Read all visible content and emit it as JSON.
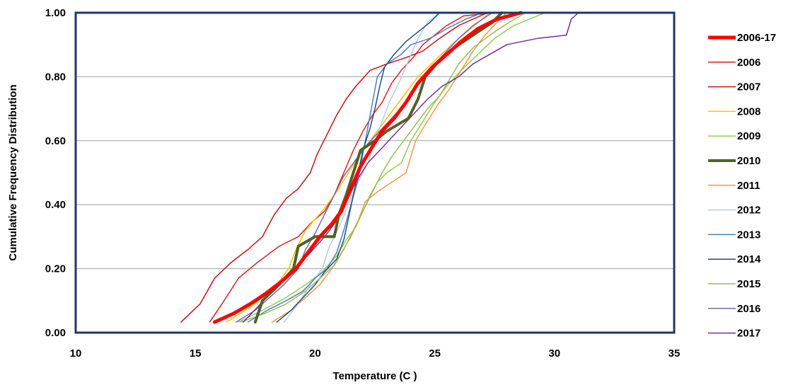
{
  "chart_data": {
    "type": "line",
    "title": "",
    "xlabel": "Temperature (C )",
    "ylabel": "Cumulative Frequency Distribution",
    "xlim": [
      10,
      35
    ],
    "ylim": [
      0,
      1
    ],
    "x_ticks": [
      "10",
      "15",
      "20",
      "25",
      "30",
      "35"
    ],
    "y_ticks": [
      "0.00",
      "0.20",
      "0.40",
      "0.60",
      "0.80",
      "1.00"
    ],
    "grid": "horizontal",
    "legend_position": "right",
    "colors": {
      "plot_border": "#1f3864",
      "grid": "#a0a0a0"
    },
    "series": [
      {
        "name": "2006-17",
        "color": "#ff0000",
        "width": 5,
        "points": [
          [
            15.8,
            0.033
          ],
          [
            16.6,
            0.06
          ],
          [
            17.3,
            0.09
          ],
          [
            17.9,
            0.12
          ],
          [
            18.6,
            0.16
          ],
          [
            19.2,
            0.2
          ],
          [
            19.7,
            0.25
          ],
          [
            20.2,
            0.3
          ],
          [
            20.7,
            0.34
          ],
          [
            21.1,
            0.38
          ],
          [
            21.5,
            0.45
          ],
          [
            21.9,
            0.52
          ],
          [
            22.3,
            0.57
          ],
          [
            22.8,
            0.63
          ],
          [
            23.3,
            0.67
          ],
          [
            23.8,
            0.72
          ],
          [
            24.3,
            0.78
          ],
          [
            24.9,
            0.83
          ],
          [
            25.5,
            0.87
          ],
          [
            26.1,
            0.91
          ],
          [
            26.8,
            0.95
          ],
          [
            27.6,
            0.98
          ],
          [
            28.6,
            1.0
          ]
        ]
      },
      {
        "name": "2006",
        "color": "#e02020",
        "width": 1.5,
        "points": [
          [
            15.6,
            0.033
          ],
          [
            16.2,
            0.1
          ],
          [
            16.8,
            0.17
          ],
          [
            17.6,
            0.22
          ],
          [
            18.5,
            0.27
          ],
          [
            19.3,
            0.3
          ],
          [
            19.8,
            0.34
          ],
          [
            20.4,
            0.38
          ],
          [
            20.8,
            0.43
          ],
          [
            21.2,
            0.5
          ],
          [
            21.6,
            0.57
          ],
          [
            22.0,
            0.63
          ],
          [
            22.4,
            0.68
          ],
          [
            22.8,
            0.72
          ],
          [
            23.2,
            0.78
          ],
          [
            23.6,
            0.82
          ],
          [
            24.1,
            0.86
          ],
          [
            24.5,
            0.9
          ],
          [
            25.0,
            0.93
          ],
          [
            25.5,
            0.96
          ],
          [
            26.2,
            0.99
          ],
          [
            27.5,
            1.0
          ]
        ]
      },
      {
        "name": "2007",
        "color": "#cc1010",
        "width": 1.5,
        "points": [
          [
            14.4,
            0.033
          ],
          [
            15.2,
            0.09
          ],
          [
            15.8,
            0.17
          ],
          [
            16.5,
            0.22
          ],
          [
            17.2,
            0.26
          ],
          [
            17.8,
            0.3
          ],
          [
            18.3,
            0.37
          ],
          [
            18.8,
            0.42
          ],
          [
            19.3,
            0.45
          ],
          [
            19.8,
            0.5
          ],
          [
            20.1,
            0.56
          ],
          [
            20.5,
            0.62
          ],
          [
            20.9,
            0.68
          ],
          [
            21.3,
            0.73
          ],
          [
            21.7,
            0.77
          ],
          [
            22.3,
            0.82
          ],
          [
            23.0,
            0.84
          ],
          [
            23.8,
            0.86
          ],
          [
            24.5,
            0.88
          ],
          [
            25.2,
            0.92
          ],
          [
            26.0,
            0.96
          ],
          [
            27.2,
            1.0
          ]
        ]
      },
      {
        "name": "2008",
        "color": "#ffc000",
        "width": 1.5,
        "points": [
          [
            16.3,
            0.033
          ],
          [
            17.3,
            0.08
          ],
          [
            18.3,
            0.14
          ],
          [
            18.9,
            0.2
          ],
          [
            19.2,
            0.26
          ],
          [
            19.6,
            0.32
          ],
          [
            20.3,
            0.38
          ],
          [
            20.9,
            0.44
          ],
          [
            21.4,
            0.5
          ],
          [
            21.9,
            0.56
          ],
          [
            22.5,
            0.62
          ],
          [
            23.1,
            0.68
          ],
          [
            23.7,
            0.74
          ],
          [
            24.3,
            0.8
          ],
          [
            25.0,
            0.85
          ],
          [
            25.7,
            0.9
          ],
          [
            26.5,
            0.95
          ],
          [
            27.3,
            1.0
          ]
        ]
      },
      {
        "name": "2009",
        "color": "#92d050",
        "width": 1.5,
        "points": [
          [
            16.8,
            0.033
          ],
          [
            17.8,
            0.07
          ],
          [
            18.8,
            0.11
          ],
          [
            19.6,
            0.15
          ],
          [
            20.3,
            0.19
          ],
          [
            20.9,
            0.24
          ],
          [
            21.3,
            0.29
          ],
          [
            21.7,
            0.33
          ],
          [
            22.0,
            0.38
          ],
          [
            22.3,
            0.43
          ],
          [
            22.6,
            0.47
          ],
          [
            23.0,
            0.5
          ],
          [
            23.6,
            0.53
          ],
          [
            24.0,
            0.6
          ],
          [
            24.5,
            0.66
          ],
          [
            25.0,
            0.72
          ],
          [
            25.5,
            0.77
          ],
          [
            26.1,
            0.82
          ],
          [
            26.8,
            0.87
          ],
          [
            27.5,
            0.92
          ],
          [
            28.3,
            0.96
          ],
          [
            29.6,
            1.0
          ]
        ]
      },
      {
        "name": "2010",
        "color": "#4f6228",
        "width": 4,
        "points": [
          [
            17.5,
            0.033
          ],
          [
            17.8,
            0.1
          ],
          [
            18.5,
            0.15
          ],
          [
            19.1,
            0.2
          ],
          [
            19.3,
            0.27
          ],
          [
            20.0,
            0.3
          ],
          [
            20.8,
            0.3
          ],
          [
            21.0,
            0.37
          ],
          [
            21.3,
            0.43
          ],
          [
            21.6,
            0.5
          ],
          [
            21.9,
            0.57
          ],
          [
            22.5,
            0.6
          ],
          [
            23.0,
            0.63
          ],
          [
            23.9,
            0.67
          ],
          [
            24.3,
            0.73
          ],
          [
            24.6,
            0.8
          ],
          [
            25.3,
            0.86
          ],
          [
            26.0,
            0.9
          ],
          [
            26.8,
            0.94
          ],
          [
            27.4,
            0.97
          ],
          [
            27.8,
            1.0
          ]
        ]
      },
      {
        "name": "2011",
        "color": "#f79646",
        "width": 1.5,
        "points": [
          [
            18.2,
            0.033
          ],
          [
            19.0,
            0.07
          ],
          [
            19.6,
            0.11
          ],
          [
            20.2,
            0.15
          ],
          [
            20.7,
            0.2
          ],
          [
            21.1,
            0.25
          ],
          [
            21.5,
            0.3
          ],
          [
            21.8,
            0.35
          ],
          [
            22.1,
            0.41
          ],
          [
            22.6,
            0.44
          ],
          [
            23.2,
            0.47
          ],
          [
            23.8,
            0.5
          ],
          [
            24.0,
            0.55
          ],
          [
            24.2,
            0.6
          ],
          [
            24.6,
            0.65
          ],
          [
            25.1,
            0.71
          ],
          [
            25.6,
            0.76
          ],
          [
            26.1,
            0.82
          ],
          [
            26.6,
            0.88
          ],
          [
            27.1,
            0.93
          ],
          [
            27.6,
            0.97
          ],
          [
            28.0,
            1.0
          ]
        ]
      },
      {
        "name": "2012",
        "color": "#b8cce4",
        "width": 1.5,
        "points": [
          [
            18.7,
            0.033
          ],
          [
            19.3,
            0.09
          ],
          [
            19.8,
            0.15
          ],
          [
            20.3,
            0.2
          ],
          [
            20.6,
            0.27
          ],
          [
            21.0,
            0.33
          ],
          [
            21.4,
            0.4
          ],
          [
            21.8,
            0.47
          ],
          [
            22.2,
            0.53
          ],
          [
            22.5,
            0.6
          ],
          [
            22.8,
            0.66
          ],
          [
            23.1,
            0.72
          ],
          [
            23.5,
            0.78
          ],
          [
            23.9,
            0.85
          ],
          [
            24.3,
            0.92
          ],
          [
            24.7,
            0.97
          ],
          [
            25.2,
            1.0
          ]
        ]
      },
      {
        "name": "2013",
        "color": "#4f81bd",
        "width": 1.5,
        "points": [
          [
            17.2,
            0.033
          ],
          [
            18.0,
            0.07
          ],
          [
            18.8,
            0.1
          ],
          [
            19.5,
            0.13
          ],
          [
            20.0,
            0.17
          ],
          [
            20.5,
            0.2
          ],
          [
            20.9,
            0.25
          ],
          [
            21.2,
            0.32
          ],
          [
            21.5,
            0.4
          ],
          [
            21.8,
            0.48
          ],
          [
            22.0,
            0.56
          ],
          [
            22.2,
            0.64
          ],
          [
            22.4,
            0.72
          ],
          [
            22.6,
            0.8
          ],
          [
            23.0,
            0.84
          ],
          [
            23.6,
            0.87
          ],
          [
            24.0,
            0.9
          ],
          [
            24.8,
            0.92
          ],
          [
            25.5,
            0.95
          ],
          [
            26.3,
            0.98
          ],
          [
            27.0,
            1.0
          ]
        ]
      },
      {
        "name": "2014",
        "color": "#1f4e79",
        "width": 1.5,
        "points": [
          [
            18.4,
            0.033
          ],
          [
            19.0,
            0.07
          ],
          [
            19.5,
            0.11
          ],
          [
            20.0,
            0.15
          ],
          [
            20.4,
            0.19
          ],
          [
            20.9,
            0.23
          ],
          [
            21.2,
            0.29
          ],
          [
            21.4,
            0.36
          ],
          [
            21.6,
            0.43
          ],
          [
            21.8,
            0.5
          ],
          [
            22.0,
            0.57
          ],
          [
            22.3,
            0.64
          ],
          [
            22.5,
            0.7
          ],
          [
            22.7,
            0.77
          ],
          [
            22.9,
            0.83
          ],
          [
            23.3,
            0.87
          ],
          [
            23.8,
            0.91
          ],
          [
            24.3,
            0.94
          ],
          [
            24.8,
            0.97
          ],
          [
            25.2,
            1.0
          ]
        ]
      },
      {
        "name": "2015",
        "color": "#9bbb59",
        "width": 1.5,
        "points": [
          [
            16.9,
            0.033
          ],
          [
            17.9,
            0.06
          ],
          [
            18.8,
            0.09
          ],
          [
            19.6,
            0.13
          ],
          [
            20.2,
            0.17
          ],
          [
            20.8,
            0.21
          ],
          [
            21.2,
            0.26
          ],
          [
            21.6,
            0.32
          ],
          [
            22.0,
            0.38
          ],
          [
            22.4,
            0.44
          ],
          [
            22.8,
            0.5
          ],
          [
            23.2,
            0.55
          ],
          [
            23.7,
            0.6
          ],
          [
            24.2,
            0.65
          ],
          [
            24.7,
            0.7
          ],
          [
            25.2,
            0.74
          ],
          [
            25.6,
            0.79
          ],
          [
            26.0,
            0.84
          ],
          [
            26.6,
            0.89
          ],
          [
            27.3,
            0.93
          ],
          [
            28.1,
            0.97
          ],
          [
            28.8,
            1.0
          ]
        ]
      },
      {
        "name": "2016",
        "color": "#8064a2",
        "width": 1.5,
        "points": [
          [
            16.7,
            0.033
          ],
          [
            17.5,
            0.07
          ],
          [
            18.1,
            0.11
          ],
          [
            18.7,
            0.15
          ],
          [
            19.3,
            0.2
          ],
          [
            19.6,
            0.26
          ],
          [
            20.0,
            0.31
          ],
          [
            20.4,
            0.37
          ],
          [
            20.8,
            0.43
          ],
          [
            21.2,
            0.49
          ],
          [
            21.7,
            0.54
          ],
          [
            22.2,
            0.59
          ],
          [
            22.7,
            0.63
          ],
          [
            23.2,
            0.67
          ],
          [
            23.7,
            0.71
          ],
          [
            24.1,
            0.75
          ],
          [
            24.5,
            0.8
          ],
          [
            25.0,
            0.84
          ],
          [
            25.5,
            0.88
          ],
          [
            26.0,
            0.92
          ],
          [
            26.6,
            0.96
          ],
          [
            27.4,
            1.0
          ]
        ]
      },
      {
        "name": "2017",
        "color": "#7030a0",
        "width": 1.5,
        "points": [
          [
            17.0,
            0.033
          ],
          [
            17.6,
            0.08
          ],
          [
            18.2,
            0.13
          ],
          [
            18.8,
            0.17
          ],
          [
            19.3,
            0.21
          ],
          [
            19.8,
            0.25
          ],
          [
            20.4,
            0.3
          ],
          [
            20.9,
            0.35
          ],
          [
            21.3,
            0.41
          ],
          [
            21.7,
            0.47
          ],
          [
            22.2,
            0.53
          ],
          [
            22.7,
            0.57
          ],
          [
            23.2,
            0.61
          ],
          [
            23.7,
            0.65
          ],
          [
            24.2,
            0.69
          ],
          [
            24.7,
            0.73
          ],
          [
            25.3,
            0.77
          ],
          [
            26.0,
            0.8
          ],
          [
            26.6,
            0.84
          ],
          [
            27.3,
            0.87
          ],
          [
            28.0,
            0.9
          ],
          [
            29.3,
            0.92
          ],
          [
            30.5,
            0.93
          ],
          [
            30.7,
            0.98
          ],
          [
            31.0,
            1.0
          ]
        ]
      }
    ]
  }
}
